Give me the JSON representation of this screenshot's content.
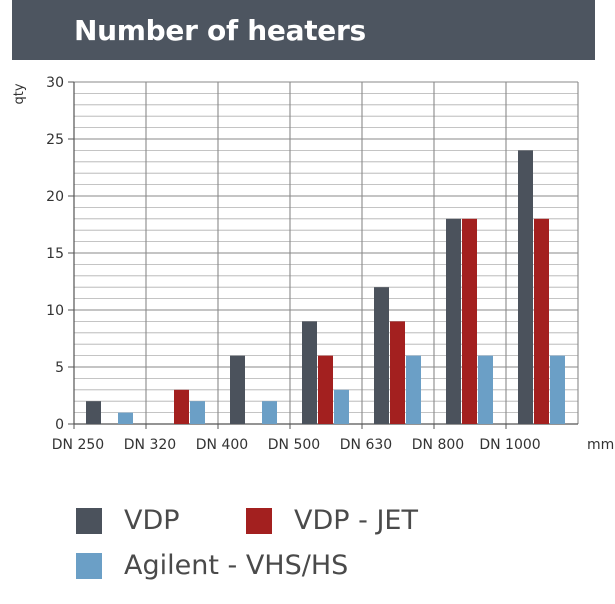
{
  "header": {
    "title": "Number of heaters"
  },
  "chart_data": {
    "type": "bar",
    "title": "Number of heaters",
    "ylabel": "qty",
    "xunit": "mm",
    "ylim": [
      0,
      30
    ],
    "yticks": [
      0,
      5,
      10,
      15,
      20,
      25,
      30
    ],
    "grid": true,
    "categories": [
      "DN 250",
      "DN 320",
      "DN 400",
      "DN 500",
      "DN 630",
      "DN 800",
      "DN 1000"
    ],
    "series": [
      {
        "name": "VDP",
        "color": "#4b525c",
        "values": [
          2,
          0,
          6,
          9,
          12,
          18,
          24
        ]
      },
      {
        "name": "VDP - JET",
        "color": "#a3201f",
        "values": [
          0,
          3,
          0,
          6,
          9,
          18,
          18
        ]
      },
      {
        "name": "Agilent - VHS/HS",
        "color": "#6b9fc6",
        "values": [
          1,
          2,
          2,
          3,
          6,
          6,
          6
        ]
      }
    ],
    "legend_position": "bottom"
  }
}
